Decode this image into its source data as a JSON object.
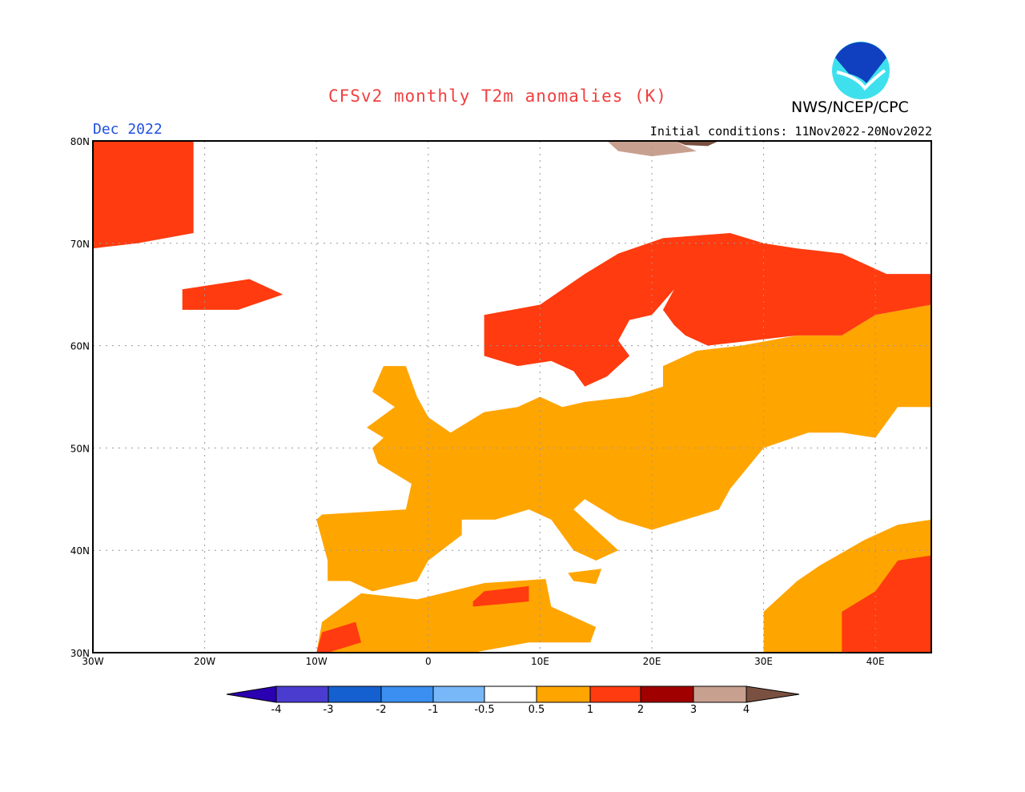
{
  "title": "CFSv2 monthly T2m anomalies (K)",
  "valid_month": "Dec 2022",
  "initial_conditions": "Initial conditions: 11Nov2022-20Nov2022",
  "agency": "NWS/NCEP/CPC",
  "logo_text": "NOAA",
  "chart_data": {
    "type": "map",
    "lon_range": [
      -30,
      45
    ],
    "lat_range": [
      30,
      80
    ],
    "x_ticks": [
      {
        "v": -30,
        "label": "30W"
      },
      {
        "v": -20,
        "label": "20W"
      },
      {
        "v": -10,
        "label": "10W"
      },
      {
        "v": 0,
        "label": "0"
      },
      {
        "v": 10,
        "label": "10E"
      },
      {
        "v": 20,
        "label": "20E"
      },
      {
        "v": 30,
        "label": "30E"
      },
      {
        "v": 40,
        "label": "40E"
      }
    ],
    "y_ticks": [
      {
        "v": 30,
        "label": "30N"
      },
      {
        "v": 40,
        "label": "40N"
      },
      {
        "v": 50,
        "label": "50N"
      },
      {
        "v": 60,
        "label": "60N"
      },
      {
        "v": 70,
        "label": "70N"
      },
      {
        "v": 80,
        "label": "80N"
      }
    ],
    "grid": true,
    "colorbar": {
      "labels": [
        "-4",
        "-3",
        "-2",
        "-1",
        "-0.5",
        "0.5",
        "1",
        "2",
        "3",
        "4"
      ],
      "colors": [
        "#2a00b0",
        "#4b3cd0",
        "#1560d0",
        "#3a8ff0",
        "#78b8f8",
        "#ffffff",
        "#ffa500",
        "#ff3b0f",
        "#a00000",
        "#c8a090",
        "#7a5040"
      ]
    },
    "regions": [
      {
        "name": "Western/Central/Eastern Europe",
        "category": "0.5 to 1",
        "color": "#ffa500",
        "points": [
          [
            -9.5,
            43.5
          ],
          [
            -2,
            44
          ],
          [
            -1.5,
            46.5
          ],
          [
            -4.5,
            48.5
          ],
          [
            -5,
            50
          ],
          [
            -4,
            51
          ],
          [
            -5.5,
            52
          ],
          [
            -3,
            54
          ],
          [
            -5,
            55.5
          ],
          [
            -4,
            58
          ],
          [
            -2,
            58
          ],
          [
            -1,
            55
          ],
          [
            0,
            53
          ],
          [
            2,
            51.5
          ],
          [
            5,
            53.5
          ],
          [
            8,
            54
          ],
          [
            10,
            55
          ],
          [
            12,
            54
          ],
          [
            14,
            54.5
          ],
          [
            18,
            55
          ],
          [
            21,
            56
          ],
          [
            21,
            58
          ],
          [
            24,
            59.5
          ],
          [
            28,
            60
          ],
          [
            33,
            61
          ],
          [
            37,
            61
          ],
          [
            40,
            63
          ],
          [
            45,
            64
          ],
          [
            45,
            54
          ],
          [
            42,
            54
          ],
          [
            40,
            51
          ],
          [
            37,
            51.5
          ],
          [
            34,
            51.5
          ],
          [
            30,
            50
          ],
          [
            27,
            46
          ],
          [
            26,
            44
          ],
          [
            23,
            43
          ],
          [
            20,
            42
          ],
          [
            17,
            43
          ],
          [
            14,
            45
          ],
          [
            13,
            44
          ],
          [
            16,
            41
          ],
          [
            17,
            40
          ],
          [
            15,
            39
          ],
          [
            13,
            40
          ],
          [
            11,
            43
          ],
          [
            9,
            44
          ],
          [
            6,
            43
          ],
          [
            3,
            43
          ],
          [
            3,
            41.5
          ],
          [
            0,
            39
          ],
          [
            -1,
            37
          ],
          [
            -5,
            36
          ],
          [
            -7,
            37
          ],
          [
            -9,
            37
          ],
          [
            -9,
            39
          ],
          [
            -10,
            43
          ]
        ]
      },
      {
        "name": "North Africa",
        "category": "0.5 to 1",
        "color": "#ffa500",
        "points": [
          [
            -10,
            30
          ],
          [
            -9.5,
            33
          ],
          [
            -6,
            35.8
          ],
          [
            -1,
            35.2
          ],
          [
            5,
            36.8
          ],
          [
            10.5,
            37.2
          ],
          [
            11,
            34.5
          ],
          [
            15,
            32.5
          ],
          [
            14.5,
            31
          ],
          [
            9,
            31
          ],
          [
            4,
            30
          ]
        ]
      },
      {
        "name": "Sicily",
        "category": "0.5 to 1",
        "color": "#ffa500",
        "points": [
          [
            12.5,
            37.8
          ],
          [
            15.5,
            38.2
          ],
          [
            15,
            36.7
          ],
          [
            13,
            37
          ]
        ]
      },
      {
        "name": "Middle East",
        "category": "0.5 to 1",
        "color": "#ffa500",
        "points": [
          [
            30,
            30
          ],
          [
            30,
            34
          ],
          [
            33,
            37
          ],
          [
            35,
            38.5
          ],
          [
            39,
            41
          ],
          [
            42,
            42.5
          ],
          [
            45,
            43
          ],
          [
            45,
            30
          ]
        ]
      },
      {
        "name": "Scandinavia and NW Russia",
        "category": "1 to 2",
        "color": "#ff3b0f",
        "points": [
          [
            5,
            61
          ],
          [
            5,
            63
          ],
          [
            10,
            64
          ],
          [
            14,
            67
          ],
          [
            17,
            69
          ],
          [
            21,
            70.5
          ],
          [
            27,
            71
          ],
          [
            30,
            70
          ],
          [
            33,
            69.5
          ],
          [
            37,
            69
          ],
          [
            41,
            67
          ],
          [
            45,
            67
          ],
          [
            45,
            64
          ],
          [
            40,
            63
          ],
          [
            37,
            61
          ],
          [
            33,
            61
          ],
          [
            29,
            60.5
          ],
          [
            25,
            60
          ],
          [
            23,
            61
          ],
          [
            22,
            62
          ],
          [
            21,
            63.5
          ],
          [
            22,
            65.5
          ],
          [
            20,
            63
          ],
          [
            18,
            62.5
          ],
          [
            17,
            60.5
          ],
          [
            18,
            59
          ],
          [
            16,
            57
          ],
          [
            14,
            56
          ],
          [
            13,
            57.5
          ],
          [
            11,
            58.5
          ],
          [
            8,
            58
          ],
          [
            5,
            59
          ]
        ]
      },
      {
        "name": "Greenland",
        "category": "1 to 2",
        "color": "#ff3b0f",
        "points": [
          [
            -30,
            80
          ],
          [
            -21,
            80
          ],
          [
            -21,
            71
          ],
          [
            -26,
            70
          ],
          [
            -30,
            69.5
          ]
        ]
      },
      {
        "name": "Iceland",
        "category": "1 to 2",
        "color": "#ff3b0f",
        "points": [
          [
            -22,
            64
          ],
          [
            -22,
            65.5
          ],
          [
            -16,
            66.5
          ],
          [
            -13,
            65
          ],
          [
            -17,
            63.5
          ],
          [
            -22,
            63.5
          ]
        ]
      },
      {
        "name": "Morocco",
        "category": "1 to 2",
        "color": "#ff3b0f",
        "points": [
          [
            -10,
            30
          ],
          [
            -9.5,
            32
          ],
          [
            -6.5,
            33
          ],
          [
            -6,
            31
          ],
          [
            -9,
            30
          ]
        ]
      },
      {
        "name": "Tunisia/Algeria",
        "category": "1 to 2",
        "color": "#ff3b0f",
        "points": [
          [
            4,
            35
          ],
          [
            5,
            36
          ],
          [
            9,
            36.5
          ],
          [
            9,
            35
          ],
          [
            4,
            34.5
          ]
        ]
      },
      {
        "name": "Middle East core",
        "category": "1 to 2",
        "color": "#ff3b0f",
        "points": [
          [
            37,
            30
          ],
          [
            37,
            34
          ],
          [
            40,
            36
          ],
          [
            42,
            39
          ],
          [
            45,
            39.5
          ],
          [
            45,
            30
          ]
        ]
      },
      {
        "name": "Svalbard",
        "category": "3 to 4",
        "color": "#c8a090",
        "points": [
          [
            16,
            80
          ],
          [
            22,
            80
          ],
          [
            24,
            79
          ],
          [
            20,
            78.5
          ],
          [
            17,
            79
          ]
        ]
      },
      {
        "name": "Svalbard east",
        "category": "above 4",
        "color": "#7a5040",
        "points": [
          [
            22,
            80
          ],
          [
            26,
            80
          ],
          [
            25,
            79.5
          ],
          [
            23,
            79.6
          ]
        ]
      }
    ]
  }
}
